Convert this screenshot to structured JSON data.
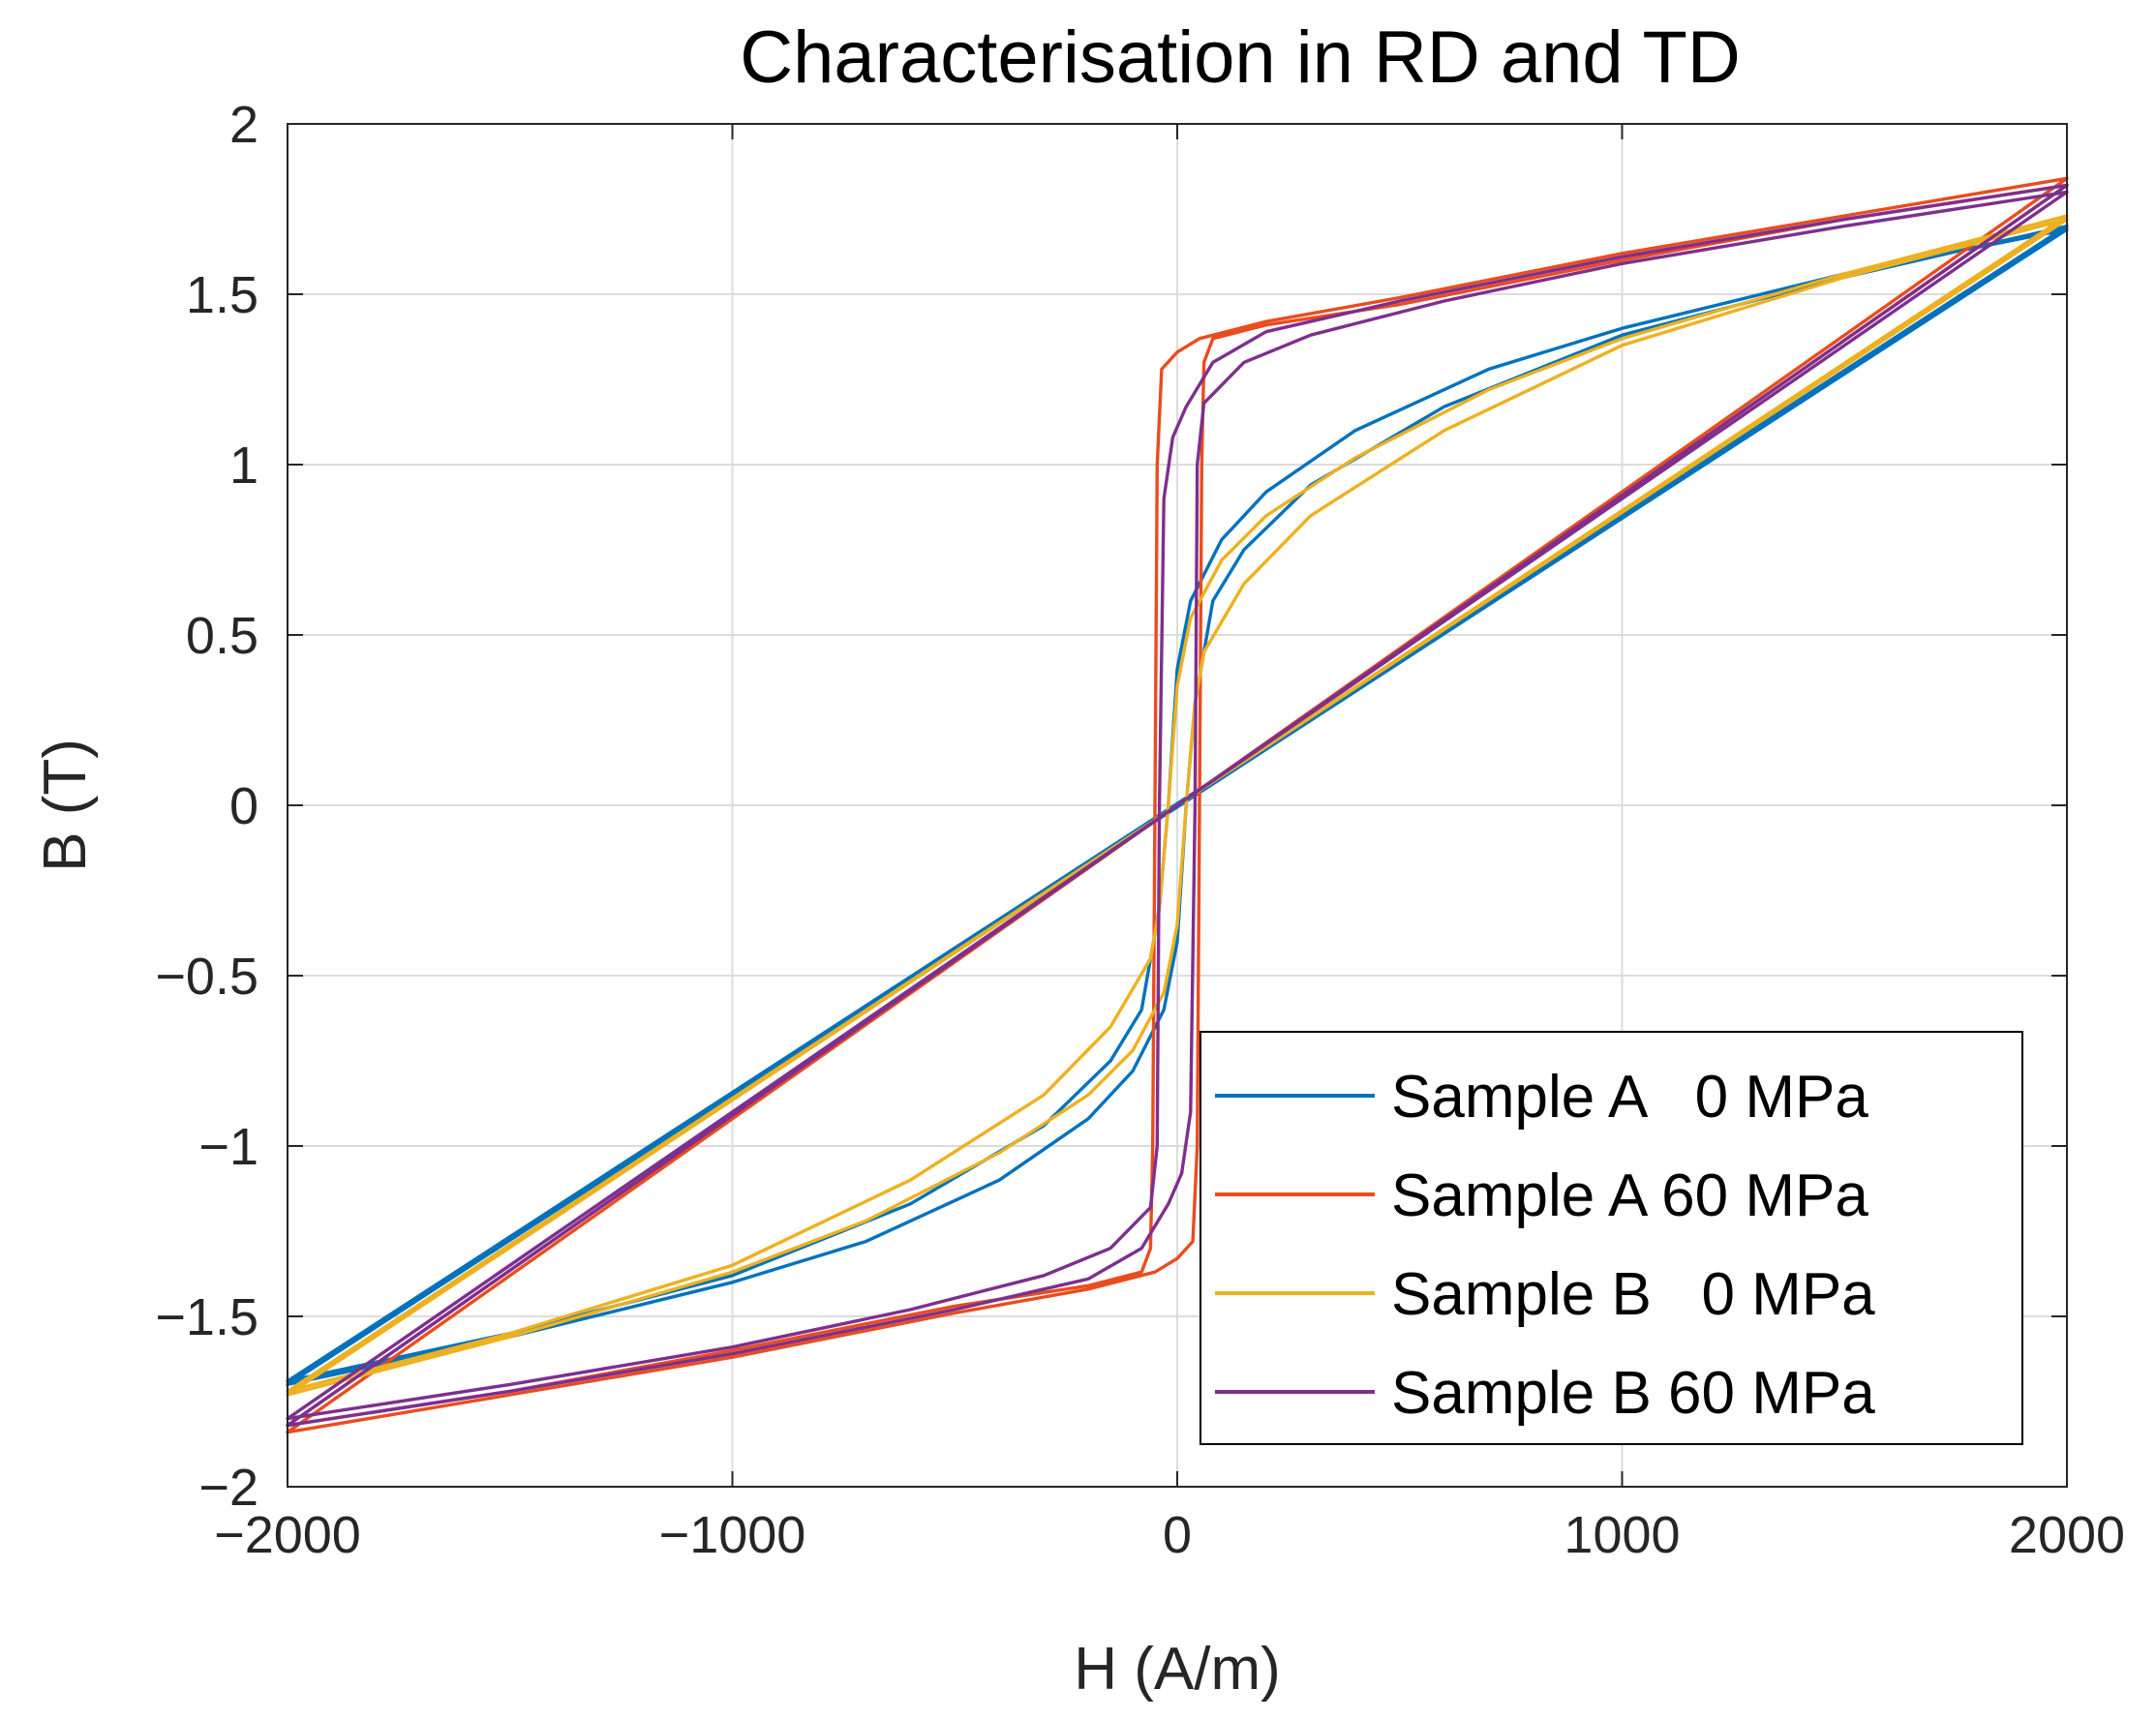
{
  "chart_data": {
    "type": "line",
    "title": "Characterisation in RD and TD",
    "xlabel": "H (A/m)",
    "ylabel": "B (T)",
    "xlim": [
      -2000,
      2000
    ],
    "ylim": [
      -2,
      2
    ],
    "grid": true,
    "legend_position": "bottom-right",
    "x_ticks": [
      -2000,
      -1000,
      0,
      1000,
      2000
    ],
    "x_tick_labels": [
      "−2000",
      "−1000",
      "0",
      "1000",
      "2000"
    ],
    "y_ticks": [
      -2,
      -1.5,
      -1,
      -0.5,
      0,
      0.5,
      1,
      1.5,
      2
    ],
    "y_tick_labels": [
      "−2",
      "−1.5",
      "−1",
      "−0.5",
      "0",
      "0.5",
      "1",
      "1.5",
      "2"
    ],
    "series": [
      {
        "name": "Sample A   0 MPa",
        "color": "#0072BD",
        "upper_branch": [
          [
            -2000,
            -1.69
          ],
          [
            -1500,
            -1.55
          ],
          [
            -1000,
            -1.38
          ],
          [
            -600,
            -1.17
          ],
          [
            -300,
            -0.94
          ],
          [
            -150,
            -0.75
          ],
          [
            -80,
            -0.6
          ],
          [
            -40,
            -0.3
          ],
          [
            -20,
            0.0
          ],
          [
            0,
            0.4
          ],
          [
            30,
            0.6
          ],
          [
            100,
            0.78
          ],
          [
            200,
            0.92
          ],
          [
            400,
            1.1
          ],
          [
            700,
            1.28
          ],
          [
            1000,
            1.4
          ],
          [
            1500,
            1.56
          ],
          [
            2000,
            1.69
          ]
        ],
        "lower_branch": [
          [
            -2000,
            -1.7
          ],
          [
            -1500,
            -1.56
          ],
          [
            -1000,
            -1.4
          ],
          [
            -700,
            -1.28
          ],
          [
            -400,
            -1.1
          ],
          [
            -200,
            -0.92
          ],
          [
            -100,
            -0.78
          ],
          [
            -30,
            -0.6
          ],
          [
            0,
            -0.4
          ],
          [
            20,
            0.0
          ],
          [
            40,
            0.3
          ],
          [
            80,
            0.6
          ],
          [
            150,
            0.75
          ],
          [
            300,
            0.94
          ],
          [
            600,
            1.17
          ],
          [
            1000,
            1.38
          ],
          [
            1500,
            1.55
          ],
          [
            2000,
            1.7
          ]
        ]
      },
      {
        "name": "Sample A 60 MPa",
        "color": "#EA4C1E",
        "upper_branch": [
          [
            -2000,
            -1.82
          ],
          [
            -1500,
            -1.72
          ],
          [
            -1000,
            -1.6
          ],
          [
            -500,
            -1.47
          ],
          [
            -200,
            -1.41
          ],
          [
            -80,
            -1.37
          ],
          [
            -60,
            -1.3
          ],
          [
            -55,
            -1.0
          ],
          [
            -50,
            0.0
          ],
          [
            -45,
            1.0
          ],
          [
            -35,
            1.28
          ],
          [
            0,
            1.33
          ],
          [
            50,
            1.37
          ],
          [
            200,
            1.42
          ],
          [
            500,
            1.49
          ],
          [
            1000,
            1.62
          ],
          [
            1500,
            1.73
          ],
          [
            2000,
            1.84
          ]
        ],
        "lower_branch": [
          [
            -2000,
            -1.84
          ],
          [
            -1500,
            -1.73
          ],
          [
            -1000,
            -1.62
          ],
          [
            -500,
            -1.49
          ],
          [
            -200,
            -1.42
          ],
          [
            -50,
            -1.37
          ],
          [
            0,
            -1.33
          ],
          [
            35,
            -1.28
          ],
          [
            45,
            -1.0
          ],
          [
            50,
            0.0
          ],
          [
            55,
            1.0
          ],
          [
            60,
            1.3
          ],
          [
            80,
            1.37
          ],
          [
            200,
            1.41
          ],
          [
            500,
            1.47
          ],
          [
            1000,
            1.6
          ],
          [
            1500,
            1.72
          ],
          [
            2000,
            1.82
          ]
        ]
      },
      {
        "name": "Sample B   0 MPa",
        "color": "#EDB120",
        "upper_branch": [
          [
            -2000,
            -1.72
          ],
          [
            -1500,
            -1.55
          ],
          [
            -1000,
            -1.35
          ],
          [
            -600,
            -1.1
          ],
          [
            -300,
            -0.85
          ],
          [
            -150,
            -0.65
          ],
          [
            -60,
            -0.45
          ],
          [
            -40,
            -0.3
          ],
          [
            -20,
            0.0
          ],
          [
            0,
            0.35
          ],
          [
            30,
            0.55
          ],
          [
            100,
            0.72
          ],
          [
            200,
            0.85
          ],
          [
            400,
            1.02
          ],
          [
            700,
            1.22
          ],
          [
            1000,
            1.37
          ],
          [
            1500,
            1.56
          ],
          [
            2000,
            1.73
          ]
        ],
        "lower_branch": [
          [
            -2000,
            -1.73
          ],
          [
            -1500,
            -1.56
          ],
          [
            -1000,
            -1.37
          ],
          [
            -700,
            -1.22
          ],
          [
            -400,
            -1.02
          ],
          [
            -200,
            -0.85
          ],
          [
            -100,
            -0.72
          ],
          [
            -30,
            -0.55
          ],
          [
            0,
            -0.35
          ],
          [
            20,
            0.0
          ],
          [
            40,
            0.3
          ],
          [
            60,
            0.45
          ],
          [
            150,
            0.65
          ],
          [
            300,
            0.85
          ],
          [
            600,
            1.1
          ],
          [
            1000,
            1.35
          ],
          [
            1500,
            1.55
          ],
          [
            2000,
            1.72
          ]
        ]
      },
      {
        "name": "Sample B 60 MPa",
        "color": "#7E2F8E",
        "upper_branch": [
          [
            -2000,
            -1.8
          ],
          [
            -1500,
            -1.7
          ],
          [
            -1000,
            -1.59
          ],
          [
            -600,
            -1.48
          ],
          [
            -300,
            -1.38
          ],
          [
            -150,
            -1.3
          ],
          [
            -60,
            -1.18
          ],
          [
            -45,
            -1.0
          ],
          [
            -40,
            0.0
          ],
          [
            -30,
            0.9
          ],
          [
            -10,
            1.08
          ],
          [
            20,
            1.17
          ],
          [
            80,
            1.3
          ],
          [
            200,
            1.39
          ],
          [
            500,
            1.48
          ],
          [
            1000,
            1.61
          ],
          [
            1500,
            1.72
          ],
          [
            2000,
            1.82
          ]
        ],
        "lower_branch": [
          [
            -2000,
            -1.82
          ],
          [
            -1500,
            -1.72
          ],
          [
            -1000,
            -1.61
          ],
          [
            -500,
            -1.48
          ],
          [
            -200,
            -1.39
          ],
          [
            -80,
            -1.3
          ],
          [
            -20,
            -1.17
          ],
          [
            10,
            -1.08
          ],
          [
            30,
            -0.9
          ],
          [
            40,
            0.0
          ],
          [
            45,
            1.0
          ],
          [
            60,
            1.18
          ],
          [
            150,
            1.3
          ],
          [
            300,
            1.38
          ],
          [
            600,
            1.48
          ],
          [
            1000,
            1.59
          ],
          [
            1500,
            1.7
          ],
          [
            2000,
            1.8
          ]
        ]
      }
    ]
  }
}
